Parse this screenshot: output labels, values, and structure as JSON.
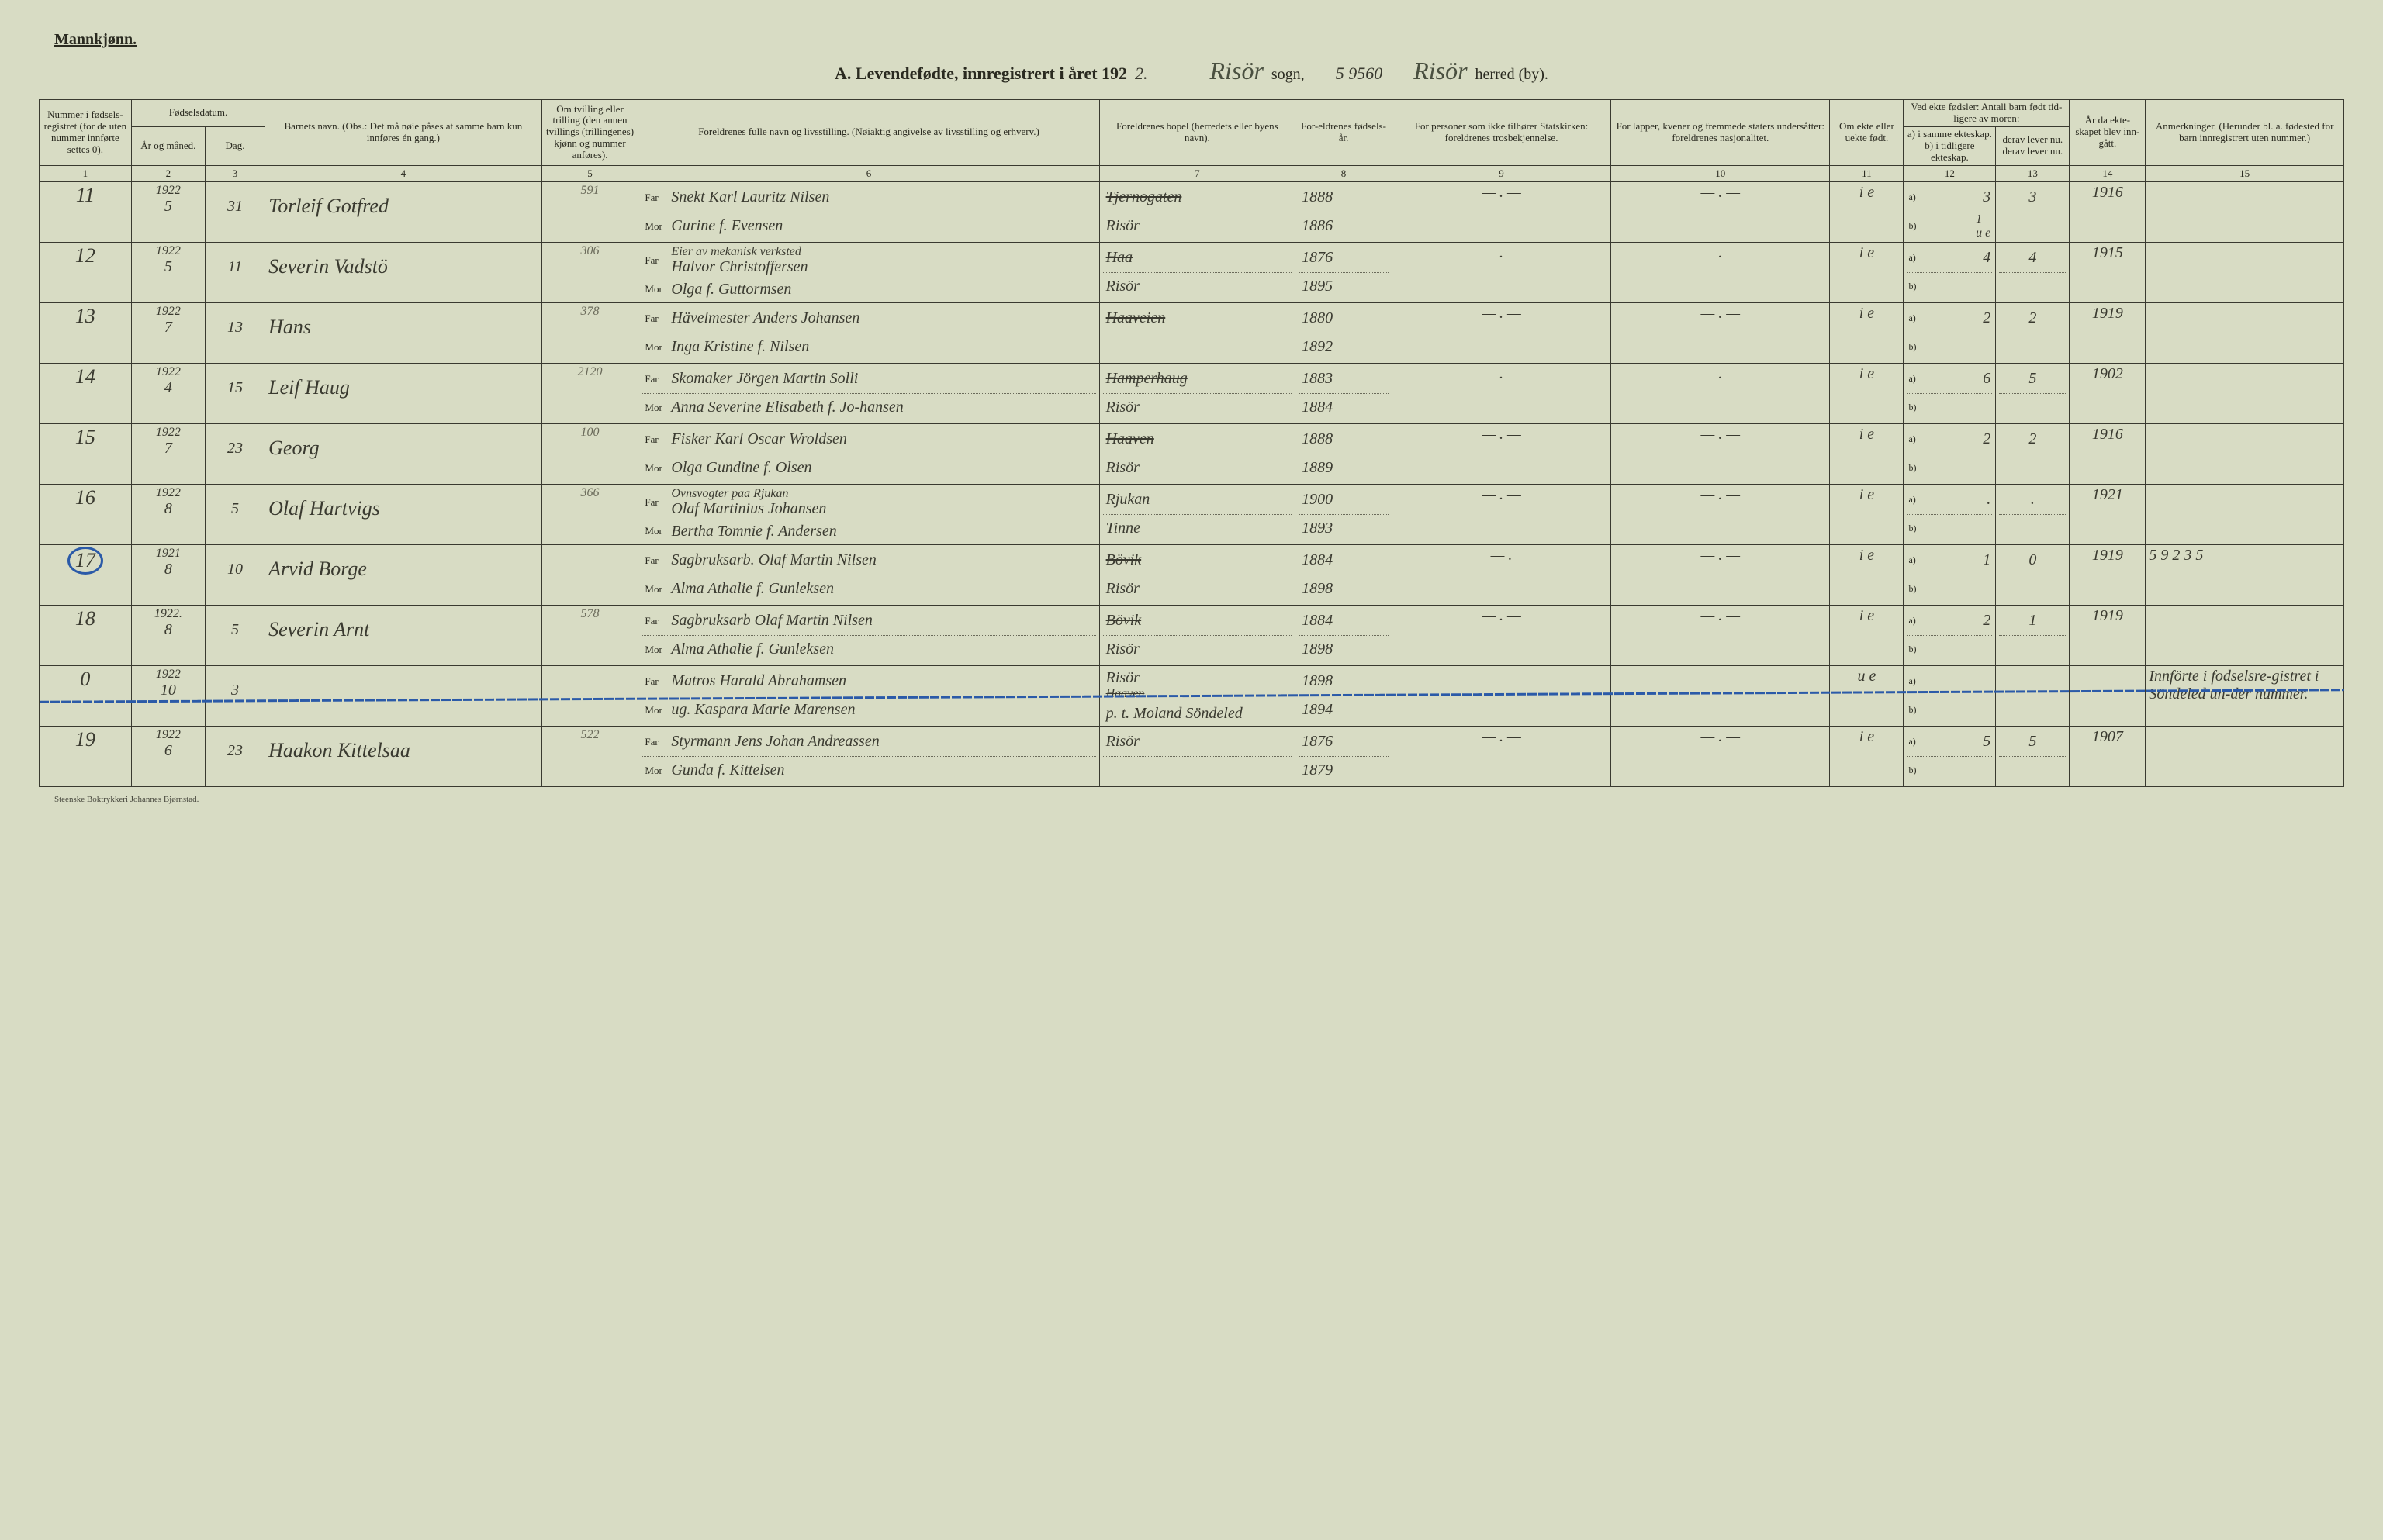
{
  "colors": {
    "paper": "#d8dcc4",
    "ink": "#2a2a20",
    "rule": "#3a3a30",
    "pencil_blue": "#2b5aa8"
  },
  "header": {
    "gender": "Mannkjønn.",
    "title_prefix": "A.  Levendefødte, innregistrert i året 192",
    "year_suffix": "2.",
    "label_sogn": "sogn,",
    "label_herred": "herred (by).",
    "sogn_value": "Risör",
    "herred_value": "Risör",
    "reference_number": "5 9560"
  },
  "column_headers": {
    "1": "Nummer i fødsels-registret (for de uten nummer innførte settes 0).",
    "2_3_group": "Fødselsdatum.",
    "2": "År og måned.",
    "3": "Dag.",
    "4": "Barnets navn.\n(Obs.:  Det må nøie påses at samme barn kun innføres én gang.)",
    "5": "Om tvilling eller trilling (den annen tvillings (trillingenes) kjønn og nummer anføres).",
    "6": "Foreldrenes fulle navn og livsstilling.\n(Nøiaktig angivelse av livsstilling og erhverv.)",
    "7": "Foreldrenes bopel (herredets eller byens navn).",
    "8": "For-eldrenes fødsels-år.",
    "9": "For personer som ikke tilhører Statskirken: foreldrenes trosbekjennelse.",
    "10": "For lapper, kvener og fremmede staters undersåtter: foreldrenes nasjonalitet.",
    "11": "Om ekte eller uekte født.",
    "12_13_group": "Ved ekte fødsler: Antall barn født tid-ligere av moren:",
    "12": "a) i samme ekteskap.\nb) i tidligere ekteskap.",
    "13": "derav lever nu.\nderav lever nu.",
    "14": "År da ekte-skapet blev inn-gått.",
    "15": "Anmerkninger.\n(Herunder bl. a. fødested for barn innregistrert uten nummer.)"
  },
  "column_numbers": [
    "1",
    "2",
    "3",
    "4",
    "5",
    "6",
    "7",
    "8",
    "9",
    "10",
    "11",
    "12",
    "13",
    "14",
    "15"
  ],
  "sub_labels": {
    "far": "Far",
    "mor": "Mor",
    "a": "a)",
    "b": "b)"
  },
  "rows": [
    {
      "num": "11",
      "ym_year": "1922",
      "ym_month": "5",
      "day": "31",
      "child": "Torleif Gotfred",
      "twin": "591",
      "far": "Snekt Karl Lauritz Nilsen",
      "mor": "Gurine f. Evensen",
      "bopel_far": "Tjernogaten",
      "bopel_far_struck": true,
      "bopel_mor": "Risör",
      "far_year": "1888",
      "mor_year": "1886",
      "col9": "— . —",
      "col10": "— . —",
      "col11": "i e",
      "a_val": "3",
      "a_lever": "3",
      "b_val": "1",
      "b_note": "u e",
      "marriage": "1916",
      "remarks": ""
    },
    {
      "num": "12",
      "ym_year": "1922",
      "ym_month": "5",
      "day": "11",
      "child": "Severin Vadstö",
      "twin": "306",
      "far_pre": "Eier av mekanisk verksted",
      "far": "Halvor Christoffersen",
      "mor": "Olga f. Guttormsen",
      "bopel_far": "Haa",
      "bopel_far_struck": true,
      "bopel_mor": "Risör",
      "far_year": "1876",
      "mor_year": "1895",
      "col9": "— . —",
      "col10": "— . —",
      "col11": "i e",
      "a_val": "4",
      "a_lever": "4",
      "b_val": "",
      "marriage": "1915",
      "remarks": ""
    },
    {
      "num": "13",
      "ym_year": "1922",
      "ym_month": "7",
      "day": "13",
      "child": "Hans",
      "twin": "378",
      "far": "Hävelmester Anders Johansen",
      "mor": "Inga Kristine f. Nilsen",
      "bopel_far": "Haaveien",
      "bopel_far_struck": true,
      "bopel_mor": "",
      "far_year": "1880",
      "mor_year": "1892",
      "col9": "— . —",
      "col10": "— . —",
      "col11": "i e",
      "a_val": "2",
      "a_lever": "2",
      "b_val": "",
      "marriage": "1919",
      "remarks": ""
    },
    {
      "num": "14",
      "ym_year": "1922",
      "ym_month": "4",
      "day": "15",
      "child": "Leif Haug",
      "twin": "2120",
      "far": "Skomaker Jörgen Martin Solli",
      "mor": "Anna Severine Elisabeth f. Jo-hansen",
      "bopel_far": "Hamperhaug",
      "bopel_far_struck": true,
      "bopel_mor": "Risör",
      "far_year": "1883",
      "mor_year": "1884",
      "col9": "— . —",
      "col10": "— . —",
      "col11": "i e",
      "a_val": "6",
      "a_lever": "5",
      "b_val": "",
      "marriage": "1902",
      "remarks": ""
    },
    {
      "num": "15",
      "ym_year": "1922",
      "ym_month": "7",
      "day": "23",
      "child": "Georg",
      "twin": "100",
      "far": "Fisker Karl Oscar Wroldsen",
      "mor": "Olga Gundine f. Olsen",
      "bopel_far": "Haaven",
      "bopel_far_struck": true,
      "bopel_mor": "Risör",
      "far_year": "1888",
      "mor_year": "1889",
      "col9": "— . —",
      "col10": "— . —",
      "col11": "i e",
      "a_val": "2",
      "a_lever": "2",
      "b_val": "",
      "marriage": "1916",
      "remarks": ""
    },
    {
      "num": "16",
      "ym_year": "1922",
      "ym_month": "8",
      "day": "5",
      "child": "Olaf Hartvigs",
      "twin": "366",
      "far_pre": "Ovnsvogter paa Rjukan",
      "far": "Olaf Martinius Johansen",
      "mor": "Bertha Tomnie f. Andersen",
      "bopel_far": "Rjukan",
      "bopel_mor": "Tinne",
      "far_year": "1900",
      "mor_year": "1893",
      "col9": "— . —",
      "col10": "— . —",
      "col11": "i e",
      "a_val": ".",
      "a_lever": ".",
      "b_val": "",
      "marriage": "1921",
      "remarks": ""
    },
    {
      "num": "17",
      "circled": true,
      "ym_year": "1921",
      "ym_month": "8",
      "day": "10",
      "child": "Arvid Borge",
      "twin": "",
      "far": "Sagbruksarb. Olaf Martin Nilsen",
      "mor": "Alma Athalie f. Gunleksen",
      "bopel_far": "Bövik",
      "bopel_far_struck": true,
      "bopel_mor": "Risör",
      "far_year": "1884",
      "mor_year": "1898",
      "col9": "— .",
      "col10": "— . —",
      "col11": "i e",
      "a_val": "1",
      "a_lever": "0",
      "b_val": "",
      "marriage": "1919",
      "remarks": "5 9 2 3 5"
    },
    {
      "num": "18",
      "ym_year": "1922.",
      "ym_month": "8",
      "day": "5",
      "child": "Severin Arnt",
      "twin": "578",
      "far": "Sagbruksarb Olaf Martin Nilsen",
      "mor": "Alma Athalie f. Gunleksen",
      "bopel_far": "Bövik",
      "bopel_far_struck": true,
      "bopel_mor": "Risör",
      "far_year": "1884",
      "mor_year": "1898",
      "col9": "— . —",
      "col10": "— . —",
      "col11": "i e",
      "a_val": "2",
      "a_lever": "1",
      "b_val": "",
      "marriage": "1919",
      "remarks": ""
    },
    {
      "num": "0",
      "wavy": true,
      "ym_year": "1922",
      "ym_month": "10",
      "day": "3",
      "child": "",
      "twin": "",
      "far": "Matros Harald Abrahamsen",
      "mor": "ug. Kaspara Marie Marensen",
      "bopel_far": "Risör",
      "bopel_far_struck_below": "Haaven",
      "bopel_mor": "p. t. Moland Söndeled",
      "far_year": "1898",
      "mor_year": "1894",
      "col9": "",
      "col10": "",
      "col11": "u e",
      "a_val": "",
      "a_lever": "",
      "b_val": "",
      "marriage": "",
      "remarks": "Innförte i fodselsre-gistret i Söndeled un-der nummer."
    },
    {
      "num": "19",
      "ym_year": "1922",
      "ym_month": "6",
      "day": "23",
      "child": "Haakon Kittelsaa",
      "twin": "522",
      "far": "Styrmann Jens Johan Andreassen",
      "mor": "Gunda f. Kittelsen",
      "bopel_far": "Risör",
      "bopel_mor": "",
      "far_year": "1876",
      "mor_year": "1879",
      "col9": "— . —",
      "col10": "— . —",
      "col11": "i e",
      "a_val": "5",
      "a_lever": "5",
      "b_val": "",
      "marriage": "1907",
      "remarks": ""
    }
  ],
  "footer": "Steenske Boktrykkeri Johannes Bjørnstad.",
  "col_widths_pct": [
    4,
    3.2,
    2.6,
    12,
    4.2,
    20,
    8.5,
    4.2,
    9.5,
    9.5,
    3.2,
    4,
    3.2,
    3.3,
    8.6
  ]
}
